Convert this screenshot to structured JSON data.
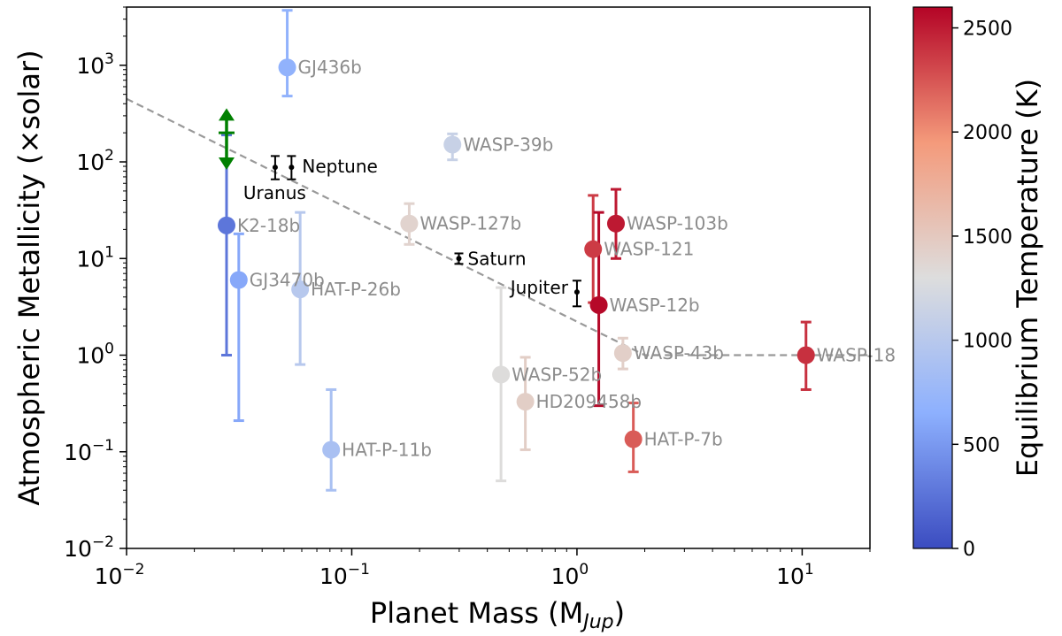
{
  "chart_data": {
    "type": "scatter",
    "xlabel": "Planet Mass (M",
    "xlabel_sub": "Jup",
    "xlabel_close": ")",
    "ylabel": "Atmospheric Metallicity (×solar)",
    "xscale": "log",
    "yscale": "log",
    "xlim": [
      0.01,
      20
    ],
    "ylim": [
      0.01,
      4000
    ],
    "x_ticks": [
      {
        "value": 0.01,
        "base": "10",
        "exp": "−2"
      },
      {
        "value": 0.1,
        "base": "10",
        "exp": "−1"
      },
      {
        "value": 1,
        "base": "10",
        "exp": "0"
      },
      {
        "value": 10,
        "base": "10",
        "exp": "1"
      }
    ],
    "y_ticks": [
      {
        "value": 0.01,
        "base": "10",
        "exp": "−2"
      },
      {
        "value": 0.1,
        "base": "10",
        "exp": "−1"
      },
      {
        "value": 1,
        "base": "10",
        "exp": "0"
      },
      {
        "value": 10,
        "base": "10",
        "exp": "1"
      },
      {
        "value": 100,
        "base": "10",
        "exp": "2"
      },
      {
        "value": 1000,
        "base": "10",
        "exp": "3"
      }
    ],
    "colorbar": {
      "label": "Equilibrium Temperature (K)",
      "min": 0,
      "max": 2600,
      "ticks": [
        {
          "value": 0,
          "label": "0"
        },
        {
          "value": 500,
          "label": "500"
        },
        {
          "value": 1000,
          "label": "1000"
        },
        {
          "value": 1500,
          "label": "1500"
        },
        {
          "value": 2000,
          "label": "2000"
        },
        {
          "value": 2500,
          "label": "2500"
        }
      ],
      "colormap": "coolwarm",
      "colors": [
        "#3b4cc0",
        "#8db0fe",
        "#dddddd",
        "#f49a7b",
        "#b40426"
      ]
    },
    "trend_line": {
      "style": "dashed",
      "color": "#999999",
      "points": [
        [
          0.01,
          450
        ],
        [
          2.0,
          1.0
        ],
        [
          20,
          1.0
        ]
      ]
    },
    "exoplanets": [
      {
        "name": "GJ436b",
        "mass": 0.0517,
        "metallicity": 950,
        "err_low": 480,
        "err_high": 3700,
        "teq": 680
      },
      {
        "name": "WASP-39b",
        "mass": 0.28,
        "metallicity": 151,
        "err_low": 105,
        "err_high": 195,
        "teq": 1120
      },
      {
        "name": "K2-18b",
        "mass": 0.0278,
        "metallicity": 22,
        "err_low": 1,
        "err_high": 190,
        "teq": 270
      },
      {
        "name": "WASP-127b",
        "mass": 0.18,
        "metallicity": 23,
        "err_low": 14,
        "err_high": 37,
        "teq": 1400
      },
      {
        "name": "GJ3470b",
        "mass": 0.0315,
        "metallicity": 6,
        "err_low": 0.21,
        "err_high": 18,
        "teq": 600
      },
      {
        "name": "HAT-P-26b",
        "mass": 0.059,
        "metallicity": 4.8,
        "err_low": 0.8,
        "err_high": 30,
        "teq": 990
      },
      {
        "name": "WASP-121",
        "mass": 1.18,
        "metallicity": 12.5,
        "err_low": 3.5,
        "err_high": 45,
        "teq": 2360
      },
      {
        "name": "WASP-103b",
        "mass": 1.49,
        "metallicity": 23,
        "err_low": 10,
        "err_high": 52,
        "teq": 2510
      },
      {
        "name": "WASP-12b",
        "mass": 1.25,
        "metallicity": 3.3,
        "err_low": 0.3,
        "err_high": 30,
        "teq": 2580
      },
      {
        "name": "WASP-52b",
        "mass": 0.46,
        "metallicity": 0.63,
        "err_low": 0.05,
        "err_high": 5.0,
        "teq": 1310
      },
      {
        "name": "HD209458b",
        "mass": 0.59,
        "metallicity": 0.33,
        "err_low": 0.105,
        "err_high": 0.95,
        "teq": 1450
      },
      {
        "name": "WASP-43b",
        "mass": 1.6,
        "metallicity": 1.05,
        "err_low": 0.72,
        "err_high": 1.5,
        "teq": 1440
      },
      {
        "name": "WASP-18",
        "mass": 10.4,
        "metallicity": 1.0,
        "err_low": 0.44,
        "err_high": 2.2,
        "teq": 2410
      },
      {
        "name": "HAT-P-7b",
        "mass": 1.78,
        "metallicity": 0.135,
        "err_low": 0.062,
        "err_high": 0.32,
        "teq": 2220
      },
      {
        "name": "HAT-P-11b",
        "mass": 0.081,
        "metallicity": 0.105,
        "err_low": 0.04,
        "err_high": 0.44,
        "teq": 880
      }
    ],
    "solar_system": [
      {
        "name": "Uranus",
        "mass": 0.0457,
        "metallicity": 88,
        "err_low": 66,
        "err_high": 115
      },
      {
        "name": "Neptune",
        "mass": 0.054,
        "metallicity": 88,
        "err_low": 66,
        "err_high": 115
      },
      {
        "name": "Saturn",
        "mass": 0.299,
        "metallicity": 10,
        "err_low": 8.8,
        "err_high": 11.3
      },
      {
        "name": "Jupiter",
        "mass": 1.0,
        "metallicity": 4.5,
        "err_low": 3.2,
        "err_high": 5.9
      }
    ],
    "lower_limit": {
      "name": "K2-18b lower limit",
      "mass": 0.0278,
      "values": [
        90,
        200,
        330
      ],
      "color": "#008000"
    }
  }
}
